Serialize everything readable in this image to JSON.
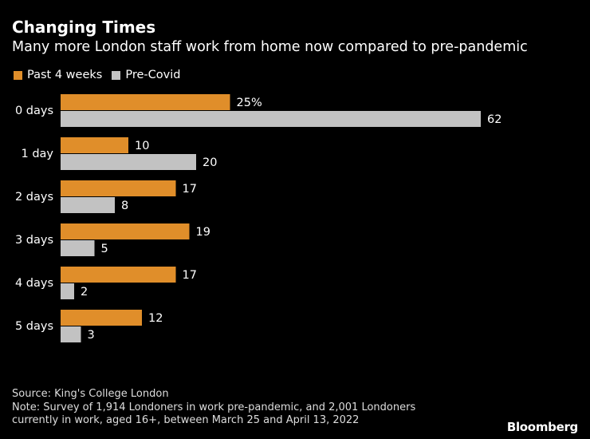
{
  "title": "Changing Times",
  "subtitle": "Many more London staff work from home now compared to pre-pandemic",
  "colors": {
    "past": "#e08e2a",
    "pre": "#c2c2c2",
    "background": "#000000"
  },
  "chart_data": {
    "type": "bar",
    "orientation": "horizontal",
    "categories": [
      "0 days",
      "1 day",
      "2 days",
      "3 days",
      "4 days",
      "5 days"
    ],
    "series": [
      {
        "name": "Past 4 weeks",
        "values": [
          25,
          10,
          17,
          19,
          17,
          12
        ]
      },
      {
        "name": "Pre-Covid",
        "values": [
          62,
          20,
          8,
          5,
          2,
          3
        ]
      }
    ],
    "first_label_suffix": "%",
    "xlim": [
      0,
      62
    ],
    "legend": "top-left",
    "grid": false
  },
  "footer": {
    "source": "Source: King's College London",
    "note": "Note: Survey of 1,914 Londoners in work pre-pandemic, and 2,001 Londoners currently in work, aged 16+, between March 25 and April 13, 2022"
  },
  "logo": "Bloomberg"
}
